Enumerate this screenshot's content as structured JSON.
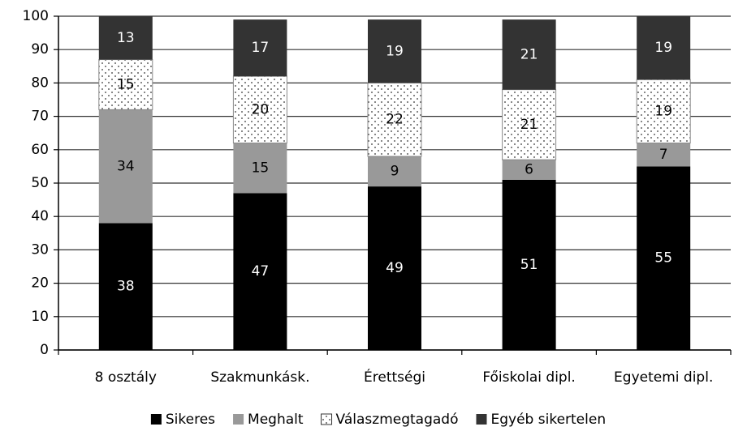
{
  "chart_data": {
    "type": "stacked_bar",
    "categories": [
      "8 osztály",
      "Szakmunkásk.",
      "Érettségi",
      "Főiskolai dipl.",
      "Egyetemi dipl."
    ],
    "series": [
      {
        "name": "Sikeres",
        "color": "#000000",
        "values": [
          38,
          47,
          49,
          51,
          55
        ]
      },
      {
        "name": "Meghalt",
        "color": "#999999",
        "values": [
          34,
          15,
          9,
          6,
          7
        ]
      },
      {
        "name": "Válaszmegtagadó",
        "color": "#ffffff",
        "pattern": "dots",
        "values": [
          15,
          20,
          22,
          21,
          19
        ]
      },
      {
        "name": "Egyéb sikertelen",
        "color": "#333333",
        "values": [
          13,
          17,
          19,
          21,
          19
        ]
      }
    ],
    "ylim": [
      0,
      100
    ],
    "yticks": [
      0,
      10,
      20,
      30,
      40,
      50,
      60,
      70,
      80,
      90,
      100
    ],
    "grid": true,
    "legend": "bottom"
  }
}
